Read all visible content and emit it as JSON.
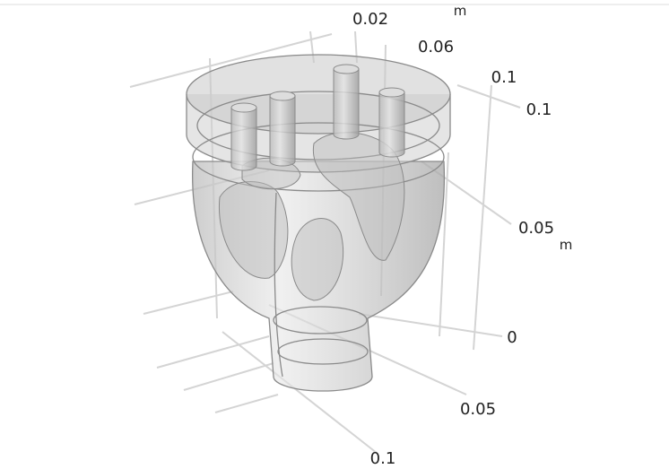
{
  "axes": [
    {
      "unit": "m",
      "ticks": [
        "0.02",
        "0.06",
        "0.1"
      ]
    },
    {
      "unit": "m",
      "ticks": [
        "0.1",
        "0.05",
        "0"
      ]
    },
    {
      "ticks": [
        "0.05",
        "0.1"
      ]
    }
  ]
}
